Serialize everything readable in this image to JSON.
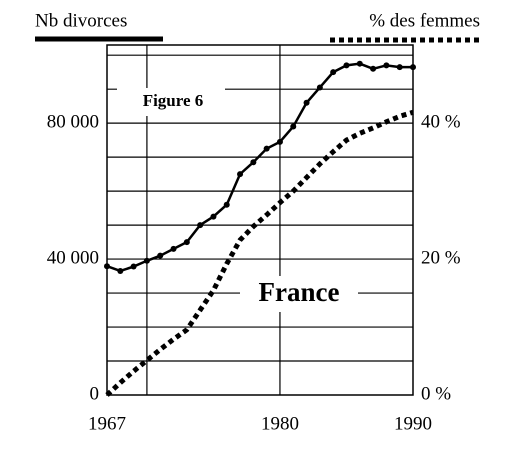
{
  "chart_data": {
    "type": "line",
    "annotations": [
      "Figure 6",
      "France"
    ],
    "x": [
      1967,
      1968,
      1969,
      1970,
      1971,
      1972,
      1973,
      1974,
      1975,
      1976,
      1977,
      1978,
      1979,
      1980,
      1981,
      1982,
      1983,
      1984,
      1985,
      1986,
      1987,
      1988,
      1989,
      1990
    ],
    "series": [
      {
        "name": "Nb divorces",
        "color": "#000000",
        "style": "solid",
        "axis": "y",
        "values": [
          37900,
          36500,
          37800,
          39500,
          41000,
          43000,
          45000,
          50000,
          52500,
          56000,
          65000,
          68500,
          72500,
          74500,
          79000,
          86000,
          90500,
          95000,
          97000,
          97500,
          96000,
          97000,
          96500,
          96500
        ]
      },
      {
        "name": "% des femmes",
        "color": "#000000",
        "style": "dotted",
        "axis": "y2",
        "values": [
          0,
          1.8,
          3.5,
          5.1,
          6.7,
          8.2,
          9.6,
          12.5,
          15.4,
          19.3,
          22.8,
          24.8,
          26.5,
          28.3,
          30,
          32,
          34,
          35.8,
          37.5,
          38.5,
          39.3,
          40.2,
          41,
          41.6
        ]
      }
    ],
    "xlim": [
      1967,
      1990
    ],
    "xticks": [
      1967,
      1980,
      1990
    ],
    "xgridlines": [
      1970,
      1980
    ],
    "ylim": [
      0,
      103000
    ],
    "yticks": [
      {
        "value": 0,
        "label": "0"
      },
      {
        "value": 40000,
        "label": "40 000"
      },
      {
        "value": 80000,
        "label": "80 000"
      }
    ],
    "ygridlines": [
      10000,
      20000,
      30000,
      40000,
      50000,
      60000,
      70000,
      80000,
      90000,
      100000
    ],
    "y2lim": [
      0,
      51.5
    ],
    "y2ticks": [
      {
        "value": 0,
        "label": "0 %"
      },
      {
        "value": 20,
        "label": "20 %"
      },
      {
        "value": 40,
        "label": "40 %"
      }
    ]
  }
}
